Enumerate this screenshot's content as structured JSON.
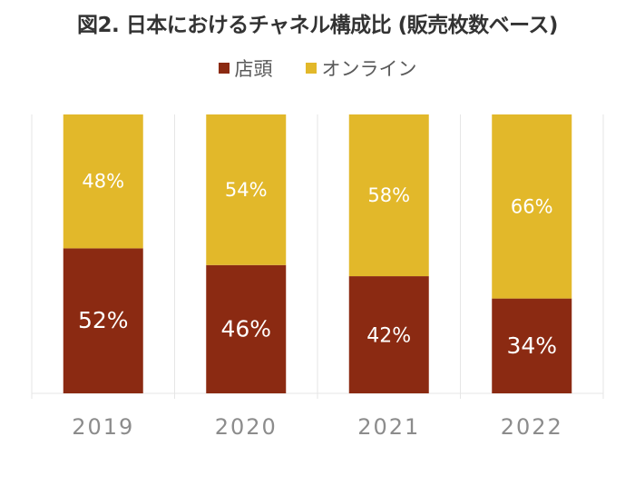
{
  "title": "図2. 日本におけるチャネル構成比 (販売枚数ベース)",
  "colors": {
    "store": "#8B2A12",
    "online": "#E2B82A",
    "label_text": "#ffffff",
    "axis_text": "#8c8c8c",
    "grid": "#e6e6e6"
  },
  "legend": {
    "store_label": "店頭",
    "online_label": "オンライン"
  },
  "chart_data": {
    "type": "bar",
    "stacked": true,
    "categories": [
      "2019",
      "2020",
      "2021",
      "2022"
    ],
    "series": [
      {
        "name": "店頭",
        "values": [
          52,
          46,
          42,
          34
        ],
        "labels": [
          "52%",
          "46%",
          "42%",
          "34%"
        ]
      },
      {
        "name": "オンライン",
        "values": [
          48,
          54,
          58,
          66
        ],
        "labels": [
          "48%",
          "54%",
          "58%",
          "66%"
        ]
      }
    ],
    "ylim": [
      0,
      100
    ],
    "legend_position": "top-center",
    "grid": true
  }
}
